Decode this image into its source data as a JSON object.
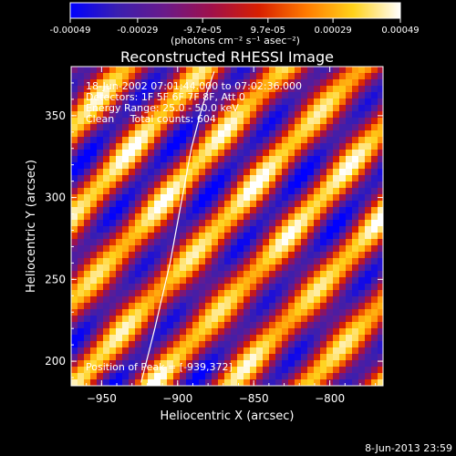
{
  "chart_data": {
    "type": "heatmap",
    "title": "Reconstructed RHESSI Image",
    "xlabel": "Heliocentric X (arcsec)",
    "ylabel": "Heliocentric Y (arcsec)",
    "xlim": [
      -970,
      -765
    ],
    "ylim": [
      185,
      380
    ],
    "xticks": [
      -950,
      -900,
      -850,
      -800
    ],
    "yticks": [
      200,
      250,
      300,
      350
    ],
    "colorbar": {
      "ticks": [
        "-0.00049",
        "-0.00029",
        "-9.7e-05",
        "9.7e-05",
        "0.00029",
        "0.00049"
      ],
      "tick_values": [
        -0.00049,
        -0.00029,
        -9.7e-05,
        9.7e-05,
        0.00029,
        0.00049
      ],
      "range": [
        -0.00049,
        0.00049
      ],
      "units_label": "(photons cm⁻² s⁻¹ asec⁻²)",
      "colors": [
        "#0000ff",
        "#3a1fb0",
        "#6a1a8a",
        "#a0104a",
        "#d81f00",
        "#ff7a00",
        "#ffd21a",
        "#ffffff"
      ]
    },
    "annotations": [
      "18-Jun-2002 07:01:44.000 to 07:02:36.000",
      "Detectors: 1F 5F 6F 7F 8F, Att 0",
      "Energy Range: 25.0 - 50.0 keV",
      "Clean     Total counts: 604"
    ],
    "peak_label": "Position of Peak = [-939,372]",
    "footer": "8-Jun-2013 23:59",
    "limb_line": {
      "x": [
        -924,
        -915,
        -905,
        -897,
        -891,
        -884,
        -876
      ],
      "y": [
        187,
        220,
        260,
        300,
        330,
        355,
        377
      ]
    },
    "pattern": {
      "description_values": "diagonal stripe modulation",
      "wavelength_arcsec": 38,
      "angle_deg": 48
    }
  }
}
